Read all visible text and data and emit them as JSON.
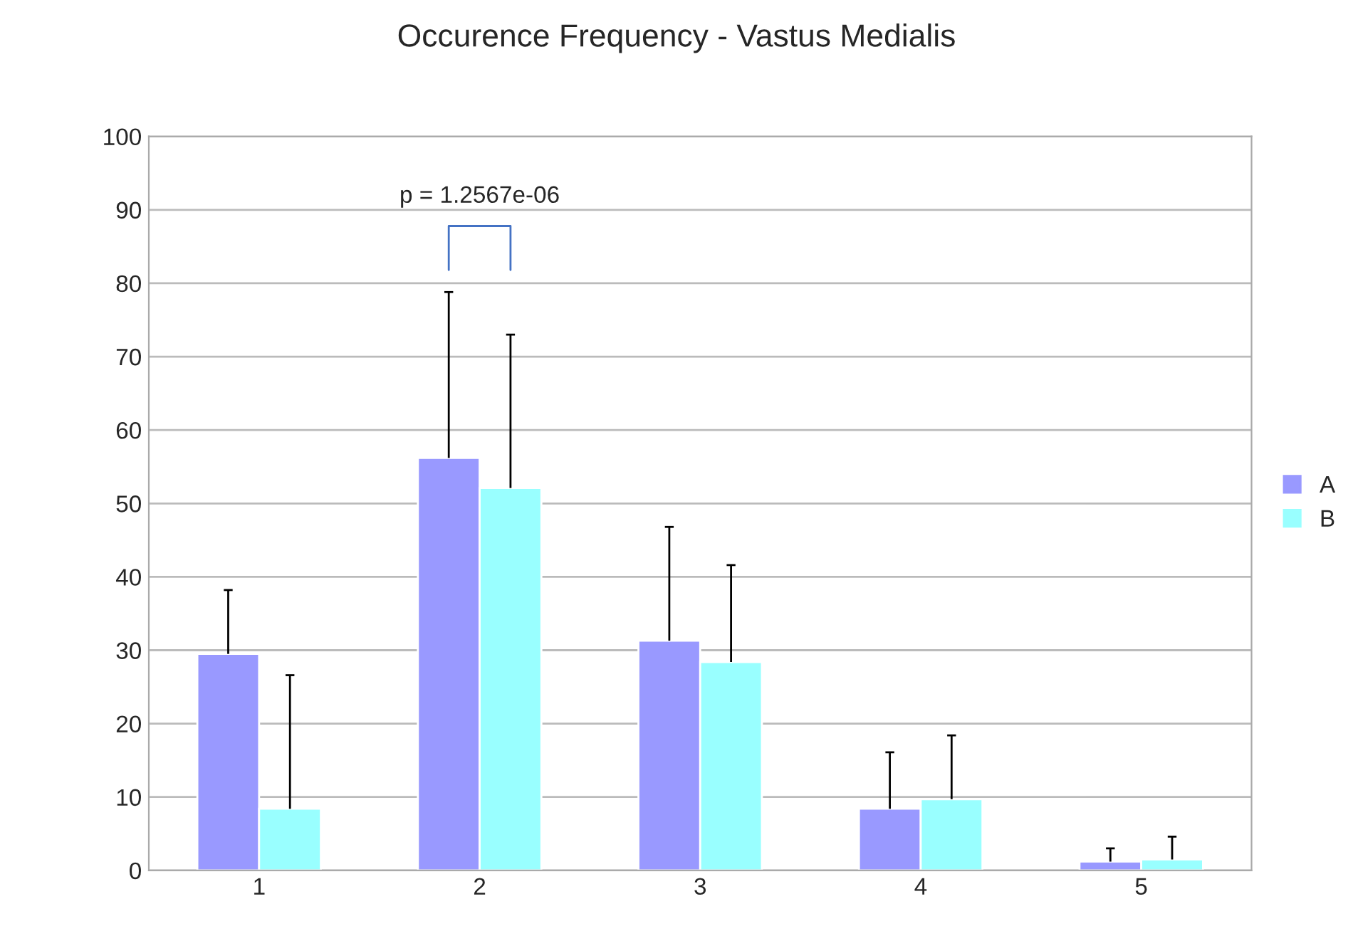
{
  "chart_data": {
    "type": "bar",
    "title": "Occurence Frequency - Vastus Medialis",
    "categories": [
      "1",
      "2",
      "3",
      "4",
      "5"
    ],
    "series": [
      {
        "name": "A",
        "color": "#9999ff",
        "values": [
          29.5,
          56.2,
          31.3,
          8.4,
          1.2
        ],
        "errors": [
          [
            29.5,
            38.2
          ],
          [
            56.2,
            78.8
          ],
          [
            31.3,
            46.8
          ],
          [
            8.4,
            16.1
          ],
          [
            1.2,
            3.0
          ]
        ]
      },
      {
        "name": "B",
        "color": "#99ffff",
        "values": [
          8.4,
          52.1,
          28.4,
          9.7,
          1.5
        ],
        "errors": [
          [
            8.4,
            26.6
          ],
          [
            52.1,
            73.0
          ],
          [
            28.4,
            41.6
          ],
          [
            9.7,
            18.4
          ],
          [
            1.5,
            4.6
          ]
        ]
      }
    ],
    "ylim": [
      0,
      100
    ],
    "yticks": [
      0,
      10,
      20,
      30,
      40,
      50,
      60,
      70,
      80,
      90,
      100
    ],
    "grid": "y",
    "legend": "right",
    "annotations": [
      "p = 1.2567e-06"
    ]
  }
}
